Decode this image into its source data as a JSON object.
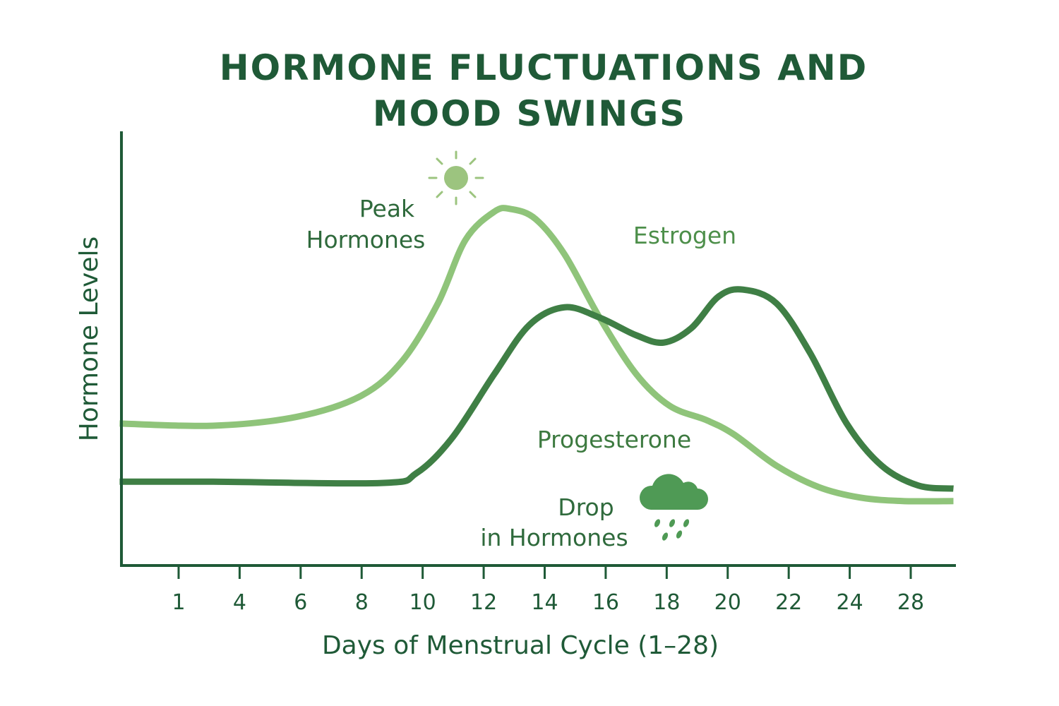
{
  "chart_data": {
    "type": "line",
    "title": "HORMONE FLUCTUATIONS AND MOOD SWINGS",
    "title_lines": [
      "HORMONE FLUCTUATIONS AND",
      "MOOD SWINGS"
    ],
    "xlabel": "Days of Menstrual Cycle (1–28)",
    "ylabel": "Hormone Levels",
    "x_ticks": [
      1,
      4,
      6,
      8,
      10,
      12,
      14,
      16,
      18,
      20,
      22,
      24,
      28
    ],
    "xlim": [
      -1.9,
      30.9
    ],
    "ylim": [
      0,
      100
    ],
    "grid": false,
    "series": [
      {
        "name": "Estrogen",
        "color": "#8fc47a",
        "x": [
          -1.9,
          2.7,
          5.9,
          8.0,
          9.35,
          10.5,
          11.4,
          12.35,
          12.9,
          13.7,
          14.65,
          15.8,
          17.0,
          18.1,
          19.3,
          20.2,
          21.6,
          23.0,
          24.7,
          27.5,
          30.8
        ],
        "y": [
          32.8,
          32.3,
          34.4,
          39.3,
          47.5,
          60.7,
          75.4,
          82.0,
          82.6,
          80.3,
          72.1,
          57.4,
          44.3,
          36.9,
          33.6,
          30.3,
          23.0,
          18.0,
          15.6,
          14.8,
          14.8
        ]
      },
      {
        "name": "Progesterone",
        "color": "#3f7f45",
        "x": [
          -1.9,
          2.7,
          8.66,
          9.8,
          10.97,
          12.35,
          13.5,
          14.65,
          15.8,
          17.0,
          17.9,
          18.8,
          19.7,
          20.5,
          21.6,
          22.7,
          23.9,
          26.1,
          28.5,
          30.8
        ],
        "y": [
          19.3,
          19.3,
          19.0,
          21.3,
          29.5,
          44.3,
          55.7,
          59.8,
          57.4,
          53.3,
          51.6,
          54.9,
          62.3,
          63.9,
          60.7,
          49.2,
          32.8,
          23.0,
          18.4,
          17.7
        ]
      }
    ],
    "annotations": {
      "peak": [
        "Peak",
        "Hormones"
      ],
      "drop": [
        "Drop",
        "in Hormones"
      ],
      "peak_icon": "sun-icon",
      "drop_icon": "rain-cloud-icon"
    },
    "colors": {
      "text": "#1f5a37",
      "axis": "#1f5a37",
      "estrogen_label": "#4d8f4a",
      "progesterone_label": "#3d7a40",
      "sun": "#9cc47f",
      "cloud": "#4f9a55"
    }
  }
}
